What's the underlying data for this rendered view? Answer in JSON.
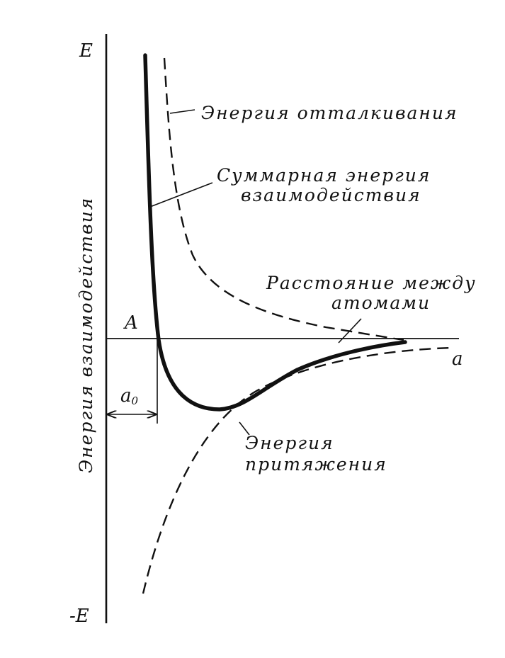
{
  "diagram": {
    "axis_labels": {
      "y_top": "E",
      "y_bottom": "-E",
      "y_title": "Энергия взаимодействия",
      "x_end": "a",
      "point": "A",
      "distance": "a",
      "distance_sub": "0"
    },
    "annotations": {
      "repulsion": "Энергия отталкивания",
      "total_line1": "Суммарная энергия",
      "total_line2": "взаимодействия",
      "distance_line1": "Расстояние между",
      "distance_line2": "атомами",
      "attraction_line1": "Энергия",
      "attraction_line2": "притяжения"
    },
    "curves": {
      "repulsion": "dashed",
      "attraction": "dashed",
      "total": "solid-bold"
    },
    "colors": {
      "ink": "#111111",
      "background": "#ffffff"
    }
  }
}
